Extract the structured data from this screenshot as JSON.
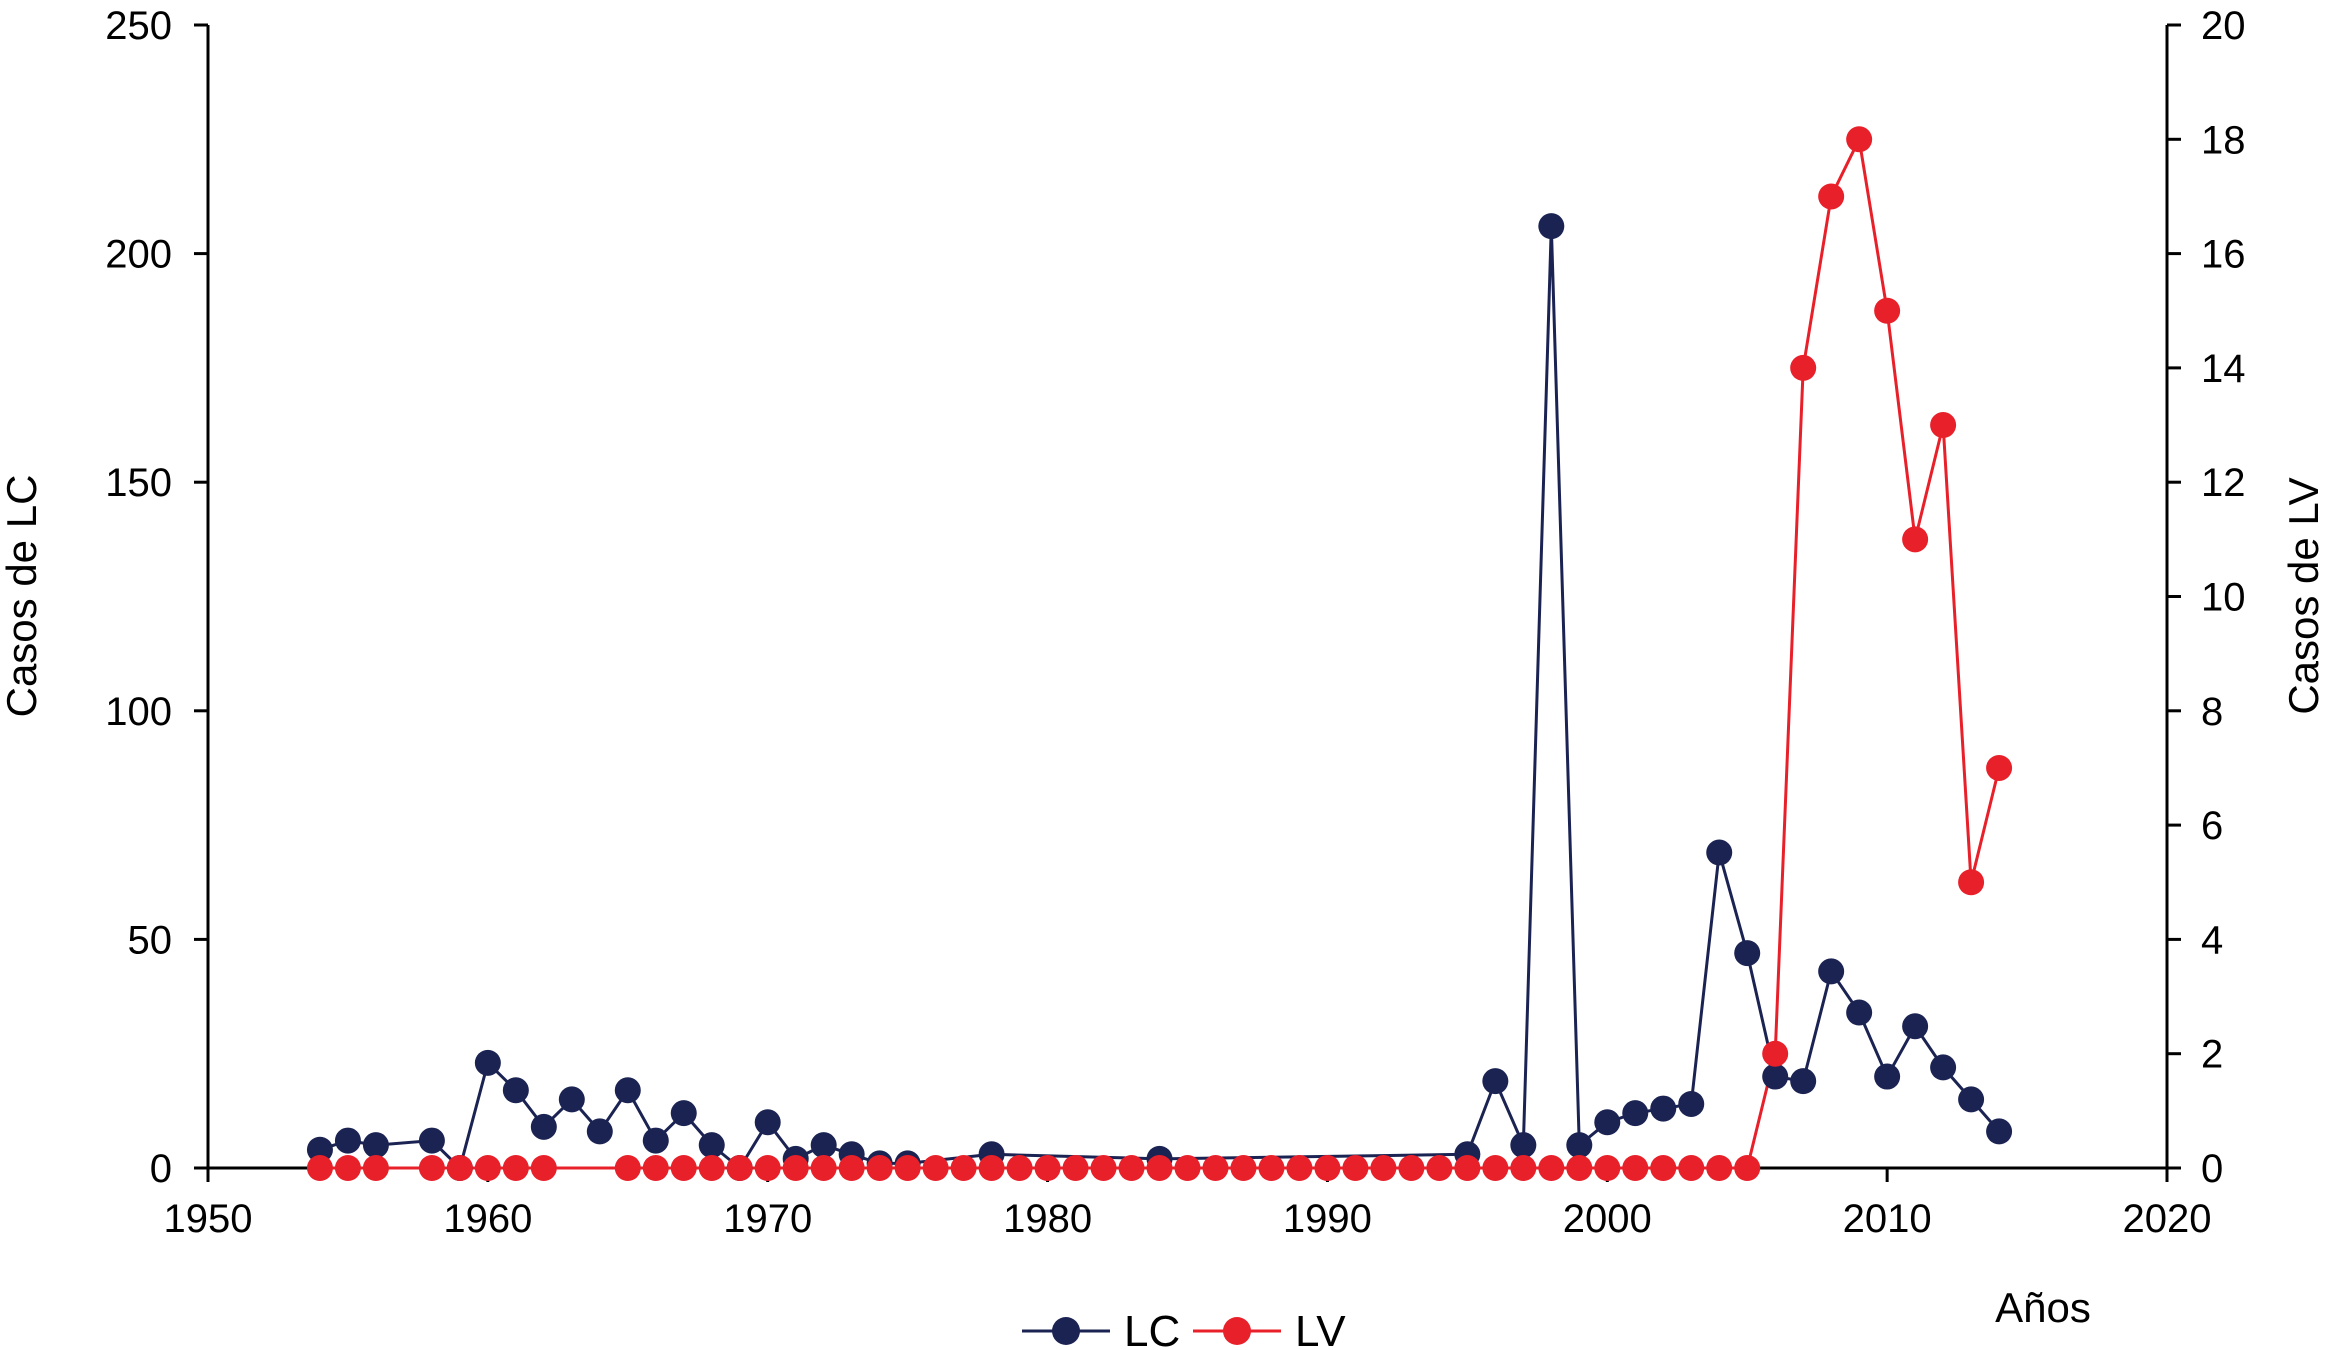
{
  "chart_data": {
    "type": "line",
    "xlabel": "Años",
    "ylabel_left": "Casos de LC",
    "ylabel_right": "Casos de LV",
    "xlim": [
      1950,
      2020
    ],
    "ylim_left": [
      0,
      250
    ],
    "ylim_right": [
      0,
      20
    ],
    "x_ticks": [
      "1950",
      "1960",
      "1970",
      "1980",
      "1990",
      "2000",
      "2010",
      "2020"
    ],
    "y_left_ticks": [
      "0",
      "50",
      "100",
      "150",
      "200",
      "250"
    ],
    "y_right_ticks": [
      "0",
      "2",
      "4",
      "6",
      "8",
      "10",
      "12",
      "14",
      "16",
      "18",
      "20"
    ],
    "legend_position": "bottom-center",
    "grid": false,
    "series": [
      {
        "name": "LC",
        "axis": "left",
        "color": "#1b2352",
        "points": [
          [
            1954,
            4
          ],
          [
            1955,
            6
          ],
          [
            1956,
            5
          ],
          [
            1958,
            6
          ],
          [
            1959,
            0
          ],
          [
            1960,
            23
          ],
          [
            1961,
            17
          ],
          [
            1962,
            9
          ],
          [
            1963,
            15
          ],
          [
            1964,
            8
          ],
          [
            1965,
            17
          ],
          [
            1966,
            6
          ],
          [
            1967,
            12
          ],
          [
            1968,
            5
          ],
          [
            1969,
            0
          ],
          [
            1970,
            10
          ],
          [
            1971,
            2
          ],
          [
            1972,
            5
          ],
          [
            1973,
            3
          ],
          [
            1974,
            1
          ],
          [
            1975,
            1
          ],
          [
            1978,
            3
          ],
          [
            1984,
            2
          ],
          [
            1995,
            3
          ],
          [
            1996,
            19
          ],
          [
            1997,
            5
          ],
          [
            1998,
            206
          ],
          [
            1999,
            5
          ],
          [
            2000,
            10
          ],
          [
            2001,
            12
          ],
          [
            2002,
            13
          ],
          [
            2003,
            14
          ],
          [
            2004,
            69
          ],
          [
            2005,
            47
          ],
          [
            2006,
            20
          ],
          [
            2007,
            19
          ],
          [
            2008,
            43
          ],
          [
            2009,
            34
          ],
          [
            2010,
            20
          ],
          [
            2011,
            31
          ],
          [
            2012,
            22
          ],
          [
            2013,
            15
          ],
          [
            2014,
            8
          ]
        ]
      },
      {
        "name": "LV",
        "axis": "right",
        "color": "#e8202a",
        "points": [
          [
            1954,
            0
          ],
          [
            1955,
            0
          ],
          [
            1956,
            0
          ],
          [
            1958,
            0
          ],
          [
            1959,
            0
          ],
          [
            1960,
            0
          ],
          [
            1961,
            0
          ],
          [
            1962,
            0
          ],
          [
            1965,
            0
          ],
          [
            1966,
            0
          ],
          [
            1967,
            0
          ],
          [
            1968,
            0
          ],
          [
            1969,
            0
          ],
          [
            1970,
            0
          ],
          [
            1971,
            0
          ],
          [
            1972,
            0
          ],
          [
            1973,
            0
          ],
          [
            1974,
            0
          ],
          [
            1975,
            0
          ],
          [
            1976,
            0
          ],
          [
            1977,
            0
          ],
          [
            1978,
            0
          ],
          [
            1979,
            0
          ],
          [
            1980,
            0
          ],
          [
            1981,
            0
          ],
          [
            1982,
            0
          ],
          [
            1983,
            0
          ],
          [
            1984,
            0
          ],
          [
            1985,
            0
          ],
          [
            1986,
            0
          ],
          [
            1987,
            0
          ],
          [
            1988,
            0
          ],
          [
            1989,
            0
          ],
          [
            1990,
            0
          ],
          [
            1991,
            0
          ],
          [
            1992,
            0
          ],
          [
            1993,
            0
          ],
          [
            1994,
            0
          ],
          [
            1995,
            0
          ],
          [
            1996,
            0
          ],
          [
            1997,
            0
          ],
          [
            1998,
            0
          ],
          [
            1999,
            0
          ],
          [
            2000,
            0
          ],
          [
            2001,
            0
          ],
          [
            2002,
            0
          ],
          [
            2003,
            0
          ],
          [
            2004,
            0
          ],
          [
            2005,
            0
          ],
          [
            2006,
            2
          ],
          [
            2007,
            14
          ],
          [
            2008,
            17
          ],
          [
            2009,
            18
          ],
          [
            2010,
            15
          ],
          [
            2011,
            11
          ],
          [
            2012,
            13
          ],
          [
            2013,
            5
          ],
          [
            2014,
            7
          ]
        ]
      }
    ]
  }
}
